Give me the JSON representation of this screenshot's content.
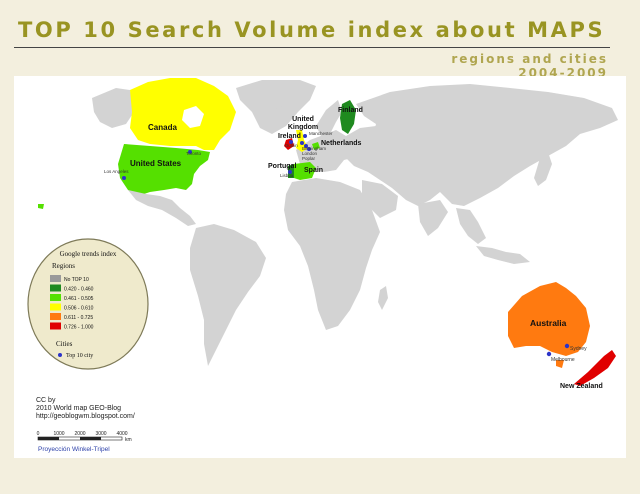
{
  "title": "TOP 10 Search Volume index about MAPS",
  "subtitle_line1": "regions and cities",
  "subtitle_line2": "2004-2009",
  "legend": {
    "heading": "Google trends index",
    "regions_heading": "Regions",
    "classes": [
      {
        "label": "No TOP 10",
        "color": "#9a9a9a"
      },
      {
        "label": "0.420 - 0.460",
        "color": "#1f8a1f"
      },
      {
        "label": "0.461 - 0.505",
        "color": "#55e000"
      },
      {
        "label": "0.506 - 0.610",
        "color": "#ffff00"
      },
      {
        "label": "0.611 - 0.725",
        "color": "#ff7a10"
      },
      {
        "label": "0.726 - 1.000",
        "color": "#e00000"
      }
    ],
    "cities_heading": "Cities",
    "city_symbol_label": "Top 10 city"
  },
  "countries": {
    "canada": "Canada",
    "usa": "United States",
    "ireland": "Ireland",
    "uk": "United Kingdom",
    "netherlands": "Netherlands",
    "finland": "Finland",
    "portugal": "Portugal",
    "spain": "Spain",
    "australia": "Australia",
    "new_zealand": "New Zealand"
  },
  "cities": {
    "toronto": "Toronto",
    "los_angeles": "Los Angeles",
    "manchester": "Manchester",
    "dublin": "Dublin",
    "birmingham": "Birmingham",
    "london": "London",
    "poplar": "Poplar",
    "lisboa": "Lisboa",
    "sydney": "Sydney",
    "melbourne": "Melbourne"
  },
  "credits": {
    "line1": "CC by",
    "line2": "2010 World map GEO-Blog",
    "line3": "http://geoblogwm.blogspot.com/"
  },
  "scale_bar": {
    "ticks": [
      "0",
      "1000",
      "2000",
      "3000",
      "4000"
    ],
    "unit": "km"
  },
  "projection": "Proyección Winkel-Tripel",
  "colors": {
    "background": "#f3efde",
    "map_frame": "#ffffff",
    "land_default": "#d3d3d3",
    "title": "#999422",
    "legend_fill": "#efeacc",
    "legend_stroke": "#7e7a58",
    "city_dot": "#2d34c8"
  }
}
